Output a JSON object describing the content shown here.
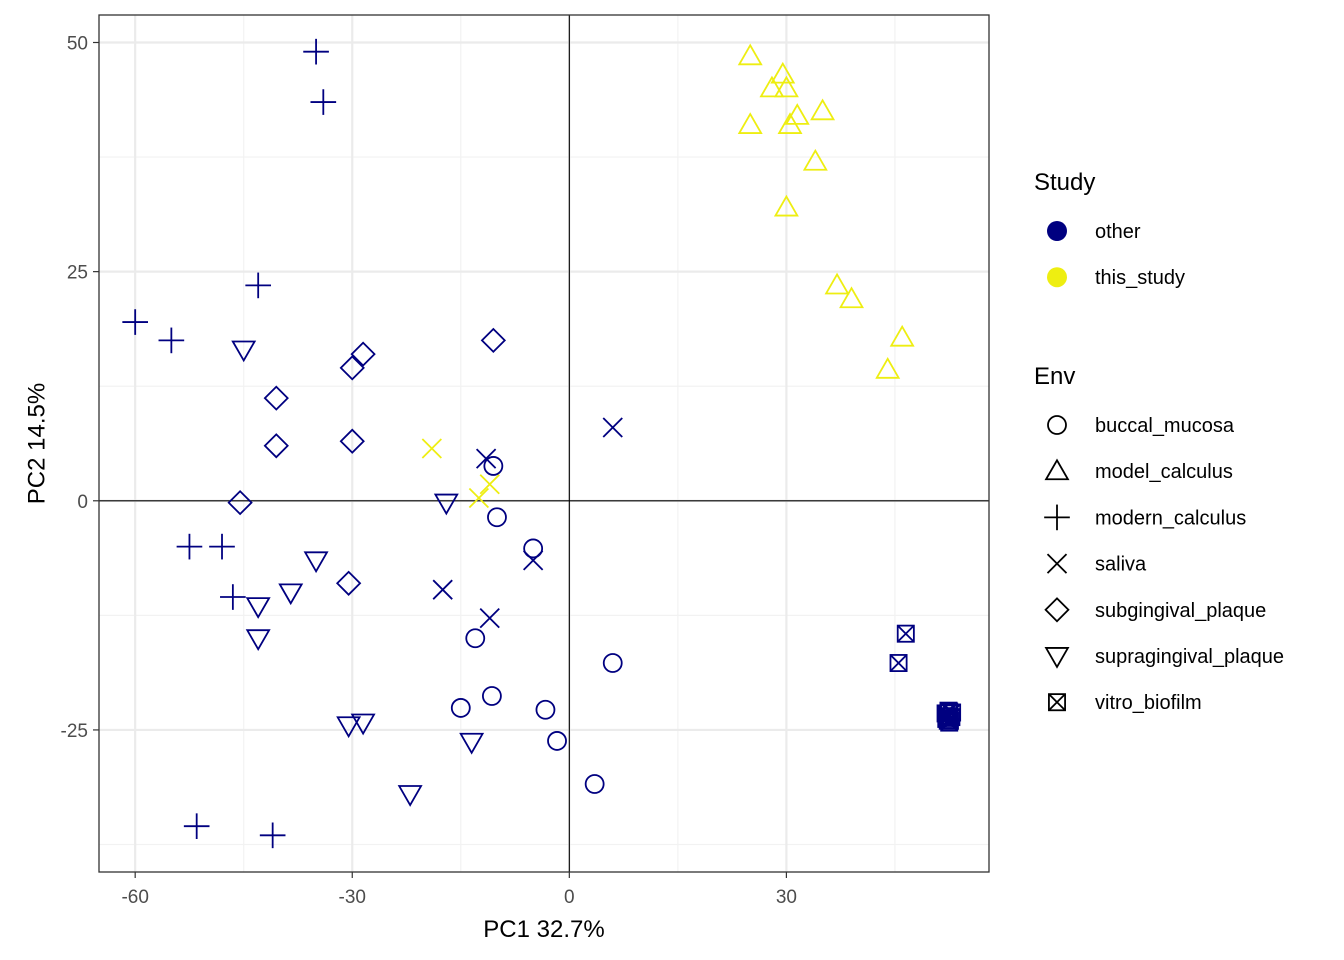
{
  "chart_data": {
    "type": "scatter",
    "xlabel": "PC1 32.7%",
    "ylabel": "PC2 14.5%",
    "xlim": [
      -65,
      58
    ],
    "ylim": [
      -40.5,
      53
    ],
    "x_ticks": [
      -60,
      -30,
      0,
      30
    ],
    "x_tick_labels": [
      "-60",
      "-30",
      "0",
      "30"
    ],
    "y_ticks": [
      -25,
      0,
      25,
      50
    ],
    "y_tick_labels": [
      "-25",
      "0",
      "25",
      "50"
    ],
    "grid": true,
    "reference_lines": {
      "x": 0,
      "y": 0
    },
    "legend_position": "right",
    "legends": [
      {
        "title": "Study",
        "kind": "color",
        "entries": [
          {
            "label": "other",
            "color": "#000080"
          },
          {
            "label": "this_study",
            "color": "#EEEE11"
          }
        ]
      },
      {
        "title": "Env",
        "kind": "shape",
        "entries": [
          {
            "label": "buccal_mucosa",
            "shape": "circle"
          },
          {
            "label": "model_calculus",
            "shape": "triangle-up"
          },
          {
            "label": "modern_calculus",
            "shape": "plus"
          },
          {
            "label": "saliva",
            "shape": "cross"
          },
          {
            "label": "subgingival_plaque",
            "shape": "diamond"
          },
          {
            "label": "supragingival_plaque",
            "shape": "triangle-down"
          },
          {
            "label": "vitro_biofilm",
            "shape": "square-cross"
          }
        ]
      }
    ],
    "series": [
      {
        "study": "other",
        "env": "modern_calculus",
        "points": [
          [
            -35,
            49
          ],
          [
            -34,
            43.5
          ],
          [
            -43,
            23.5
          ],
          [
            -60,
            19.5
          ],
          [
            -55,
            17.5
          ],
          [
            -52.5,
            -5
          ],
          [
            -48,
            -5
          ],
          [
            -46.5,
            -10.5
          ],
          [
            -51.5,
            -35.5
          ],
          [
            -41,
            -36.5
          ]
        ]
      },
      {
        "study": "other",
        "env": "supragingival_plaque",
        "points": [
          [
            -45,
            16.5
          ],
          [
            -17,
            -0.2
          ],
          [
            -35,
            -6.5
          ],
          [
            -38.5,
            -10
          ],
          [
            -43,
            -11.5
          ],
          [
            -43,
            -15
          ],
          [
            -30.5,
            -24.5
          ],
          [
            -28.5,
            -24.2
          ],
          [
            -13.5,
            -26.3
          ],
          [
            -22,
            -32
          ]
        ]
      },
      {
        "study": "other",
        "env": "subgingival_plaque",
        "points": [
          [
            -28.5,
            16
          ],
          [
            -30,
            14.5
          ],
          [
            -10.5,
            17.5
          ],
          [
            -40.5,
            11.2
          ],
          [
            -40.5,
            6
          ],
          [
            -30,
            6.5
          ],
          [
            -45.5,
            -0.2
          ],
          [
            -30.5,
            -9
          ]
        ]
      },
      {
        "study": "other",
        "env": "buccal_mucosa",
        "points": [
          [
            -10.5,
            3.8
          ],
          [
            -10,
            -1.8
          ],
          [
            -5,
            -5.2
          ],
          [
            -13,
            -15
          ],
          [
            6,
            -17.7
          ],
          [
            -10.7,
            -21.3
          ],
          [
            -15,
            -22.6
          ],
          [
            -3.3,
            -22.8
          ],
          [
            -1.7,
            -26.2
          ],
          [
            3.5,
            -30.9
          ]
        ]
      },
      {
        "study": "other",
        "env": "saliva",
        "points": [
          [
            6,
            8
          ],
          [
            -11.5,
            4.6
          ],
          [
            -5,
            -6.5
          ],
          [
            -17.5,
            -9.7
          ],
          [
            -11,
            -12.8
          ]
        ]
      },
      {
        "study": "other",
        "env": "vitro_biofilm",
        "points": [
          [
            46.5,
            -14.5
          ],
          [
            45.5,
            -17.7
          ],
          [
            52.5,
            -23
          ],
          [
            52.2,
            -23.5
          ],
          [
            52.6,
            -24
          ],
          [
            52.1,
            -23.8
          ],
          [
            52.4,
            -22.9
          ],
          [
            52.8,
            -23.6
          ],
          [
            52,
            -23.2
          ],
          [
            52.5,
            -24.2
          ],
          [
            52.9,
            -23.1
          ],
          [
            52.3,
            -24
          ]
        ]
      },
      {
        "study": "this_study",
        "env": "model_calculus",
        "points": [
          [
            25,
            48.5
          ],
          [
            29.5,
            46.5
          ],
          [
            28,
            45
          ],
          [
            30,
            45
          ],
          [
            35,
            42.5
          ],
          [
            31.5,
            42
          ],
          [
            25,
            41
          ],
          [
            30.5,
            41
          ],
          [
            34,
            37
          ],
          [
            30,
            32
          ],
          [
            37,
            23.5
          ],
          [
            39,
            22
          ],
          [
            46,
            17.8
          ],
          [
            44,
            14.3
          ]
        ]
      },
      {
        "study": "this_study",
        "env": "saliva",
        "points": [
          [
            -19,
            5.7
          ],
          [
            -11,
            1.8
          ],
          [
            -12.5,
            0.3
          ]
        ]
      }
    ]
  }
}
